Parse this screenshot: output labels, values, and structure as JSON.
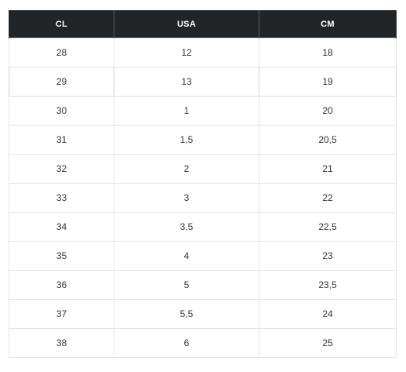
{
  "table": {
    "headers": [
      "CL",
      "USA",
      "CM"
    ],
    "rows": [
      [
        "28",
        "12",
        "18"
      ],
      [
        "29",
        "13",
        "19"
      ],
      [
        "30",
        "1",
        "20"
      ],
      [
        "31",
        "1,5",
        "20,5"
      ],
      [
        "32",
        "2",
        "21"
      ],
      [
        "33",
        "3",
        "22"
      ],
      [
        "34",
        "3,5",
        "22,5"
      ],
      [
        "35",
        "4",
        "23"
      ],
      [
        "36",
        "5",
        "23,5"
      ],
      [
        "37",
        "5,5",
        "24"
      ],
      [
        "38",
        "6",
        "25"
      ]
    ]
  },
  "colors": {
    "header_bg": "#222528",
    "header_text": "#ffffff",
    "cell_text": "#333333",
    "border": "#e4e4e4"
  }
}
